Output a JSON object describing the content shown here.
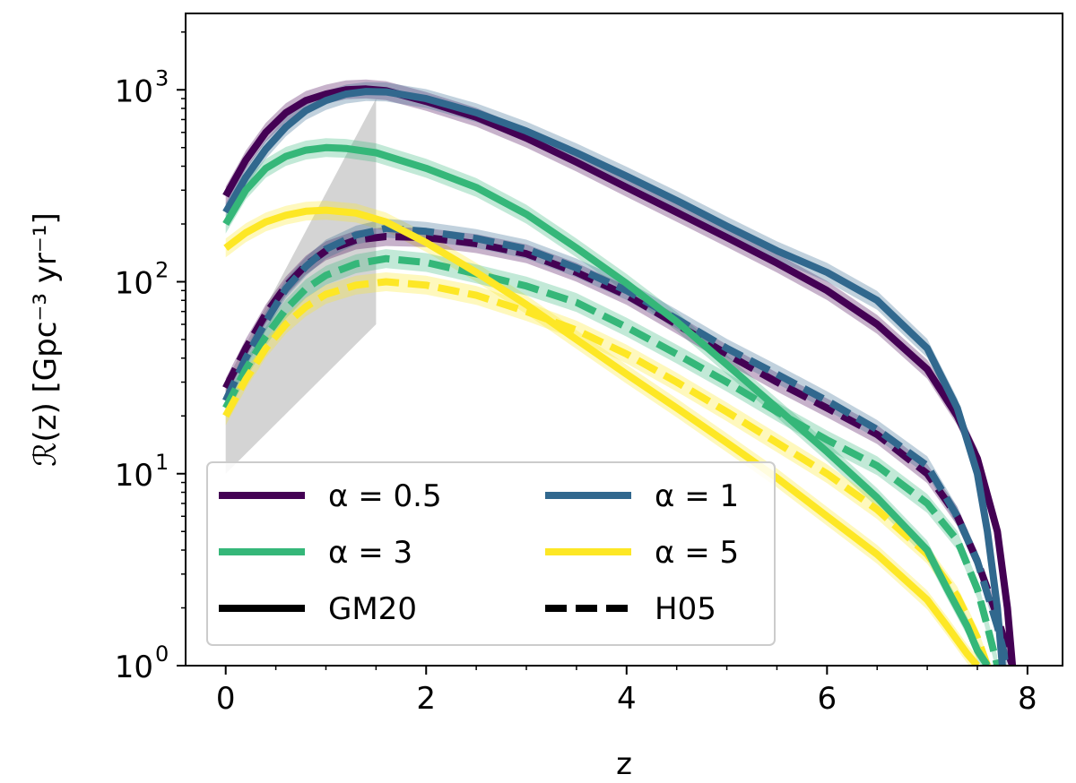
{
  "chart_data": {
    "type": "line",
    "xlabel": "z",
    "ylabel": "ℛ(z) [Gpc⁻³ yr⁻¹]",
    "xlim": [
      -0.4,
      8.35
    ],
    "ylim": [
      1,
      2500
    ],
    "yscale": "log",
    "grid": false,
    "legend_position": "lower-left",
    "xticks": [
      {
        "value": 0,
        "label": "0"
      },
      {
        "value": 2,
        "label": "2"
      },
      {
        "value": 4,
        "label": "4"
      },
      {
        "value": 6,
        "label": "6"
      },
      {
        "value": 8,
        "label": "8"
      }
    ],
    "yticks": [
      {
        "value": 1,
        "base": "10",
        "exp": "0"
      },
      {
        "value": 10,
        "base": "10",
        "exp": "1"
      },
      {
        "value": 100,
        "base": "10",
        "exp": "2"
      },
      {
        "value": 1000,
        "base": "10",
        "exp": "3"
      }
    ],
    "colors": {
      "alpha_0_5": "#440154",
      "alpha_1": "#31688e",
      "alpha_3": "#35b779",
      "alpha_5": "#fde725",
      "band": "#cccccc"
    },
    "legend": [
      {
        "label": "α = 0.5",
        "color": "#440154",
        "style": "solid"
      },
      {
        "label": "α = 1",
        "color": "#31688e",
        "style": "solid"
      },
      {
        "label": "α = 3",
        "color": "#35b779",
        "style": "solid"
      },
      {
        "label": "α = 5",
        "color": "#fde725",
        "style": "solid"
      },
      {
        "label": "GM20",
        "color": "#000000",
        "style": "solid"
      },
      {
        "label": "H05",
        "color": "#000000",
        "style": "dashed"
      }
    ],
    "observational_band": {
      "x": [
        0,
        1.5
      ],
      "lower": [
        10,
        60
      ],
      "upper": [
        30,
        900
      ]
    },
    "series": [
      {
        "key": "gm20_a0_5",
        "color": "#440154",
        "dash": false,
        "x": [
          0,
          0.2,
          0.4,
          0.6,
          0.8,
          1.0,
          1.2,
          1.4,
          1.6,
          2.0,
          2.5,
          3.0,
          3.5,
          4.0,
          4.5,
          5.0,
          5.5,
          6.0,
          6.5,
          7.0,
          7.3,
          7.5,
          7.7,
          7.8,
          7.85
        ],
        "y": [
          280,
          430,
          600,
          760,
          880,
          950,
          1000,
          1010,
          990,
          870,
          720,
          560,
          420,
          310,
          230,
          170,
          125,
          90,
          60,
          35,
          20,
          12,
          5,
          2,
          1
        ]
      },
      {
        "key": "gm20_a1",
        "color": "#31688e",
        "dash": false,
        "x": [
          0,
          0.2,
          0.4,
          0.6,
          0.8,
          1.0,
          1.2,
          1.4,
          1.6,
          2.0,
          2.5,
          3.0,
          3.5,
          4.0,
          4.5,
          5.0,
          5.5,
          6.0,
          6.5,
          7.0,
          7.3,
          7.5,
          7.6,
          7.7,
          7.75
        ],
        "y": [
          230,
          350,
          490,
          640,
          780,
          880,
          950,
          980,
          975,
          900,
          760,
          610,
          470,
          355,
          265,
          195,
          145,
          112,
          80,
          45,
          22,
          10,
          5,
          2,
          1
        ]
      },
      {
        "key": "gm20_a3",
        "color": "#35b779",
        "dash": false,
        "x": [
          0,
          0.2,
          0.4,
          0.6,
          0.8,
          1.0,
          1.2,
          1.5,
          2.0,
          2.5,
          3.0,
          3.5,
          4.0,
          4.5,
          5.0,
          5.5,
          6.0,
          6.5,
          7.0,
          7.2,
          7.4,
          7.5,
          7.6
        ],
        "y": [
          200,
          300,
          390,
          450,
          485,
          500,
          495,
          470,
          390,
          310,
          225,
          150,
          98,
          62,
          37,
          22,
          13,
          7.5,
          4,
          2.5,
          1.6,
          1.2,
          1
        ]
      },
      {
        "key": "gm20_a5",
        "color": "#fde725",
        "dash": false,
        "x": [
          0,
          0.2,
          0.4,
          0.6,
          0.8,
          1.0,
          1.3,
          1.6,
          2.0,
          2.5,
          3.0,
          3.5,
          4.0,
          4.5,
          5.0,
          5.5,
          6.0,
          6.5,
          7.0,
          7.2,
          7.4,
          7.5
        ],
        "y": [
          150,
          180,
          205,
          222,
          233,
          236,
          228,
          205,
          160,
          112,
          76,
          50,
          33,
          22,
          14.5,
          9.5,
          6,
          3.8,
          2.2,
          1.6,
          1.15,
          1
        ]
      },
      {
        "key": "h05_a0_5",
        "color": "#440154",
        "dash": true,
        "x": [
          0,
          0.2,
          0.4,
          0.6,
          0.8,
          1.0,
          1.3,
          1.6,
          2.0,
          2.5,
          3.0,
          3.5,
          4.0,
          4.5,
          5.0,
          5.5,
          6.0,
          6.5,
          7.0,
          7.3,
          7.5,
          7.7,
          7.8,
          7.85
        ],
        "y": [
          28,
          45,
          68,
          95,
          122,
          145,
          165,
          172,
          170,
          158,
          140,
          112,
          85,
          60,
          42,
          30,
          22,
          16,
          10,
          6,
          3.5,
          1.8,
          1.2,
          1
        ]
      },
      {
        "key": "h05_a1",
        "color": "#31688e",
        "dash": true,
        "x": [
          0,
          0.2,
          0.4,
          0.6,
          0.8,
          1.0,
          1.3,
          1.6,
          2.0,
          2.5,
          3.0,
          3.5,
          4.0,
          4.5,
          5.0,
          5.5,
          6.0,
          6.5,
          7.0,
          7.3,
          7.5,
          7.7,
          7.8
        ],
        "y": [
          24,
          40,
          62,
          92,
          120,
          148,
          175,
          190,
          183,
          168,
          148,
          118,
          90,
          64,
          45,
          33,
          24,
          17,
          11,
          6,
          3.5,
          1.6,
          1
        ]
      },
      {
        "key": "h05_a3",
        "color": "#35b779",
        "dash": true,
        "x": [
          0,
          0.2,
          0.4,
          0.6,
          0.8,
          1.0,
          1.3,
          1.6,
          2.0,
          2.5,
          3.0,
          3.5,
          4.0,
          4.5,
          5.0,
          5.5,
          6.0,
          6.5,
          7.0,
          7.3,
          7.5,
          7.6,
          7.7
        ],
        "y": [
          22,
          35,
          52,
          72,
          92,
          108,
          124,
          132,
          126,
          110,
          95,
          78,
          58,
          42,
          30,
          21,
          15,
          11,
          7,
          4.5,
          2.5,
          1.6,
          1
        ]
      },
      {
        "key": "h05_a5",
        "color": "#fde725",
        "dash": true,
        "x": [
          0,
          0.2,
          0.4,
          0.6,
          0.8,
          1.0,
          1.3,
          1.6,
          2.0,
          2.5,
          3.0,
          3.5,
          4.0,
          4.5,
          5.0,
          5.5,
          6.0,
          6.5,
          7.0,
          7.3,
          7.5,
          7.6
        ],
        "y": [
          20,
          31,
          45,
          60,
          74,
          86,
          96,
          100,
          96,
          85,
          70,
          56,
          42,
          30,
          21,
          14.5,
          10,
          6.5,
          3.8,
          2.3,
          1.4,
          1
        ]
      }
    ]
  }
}
